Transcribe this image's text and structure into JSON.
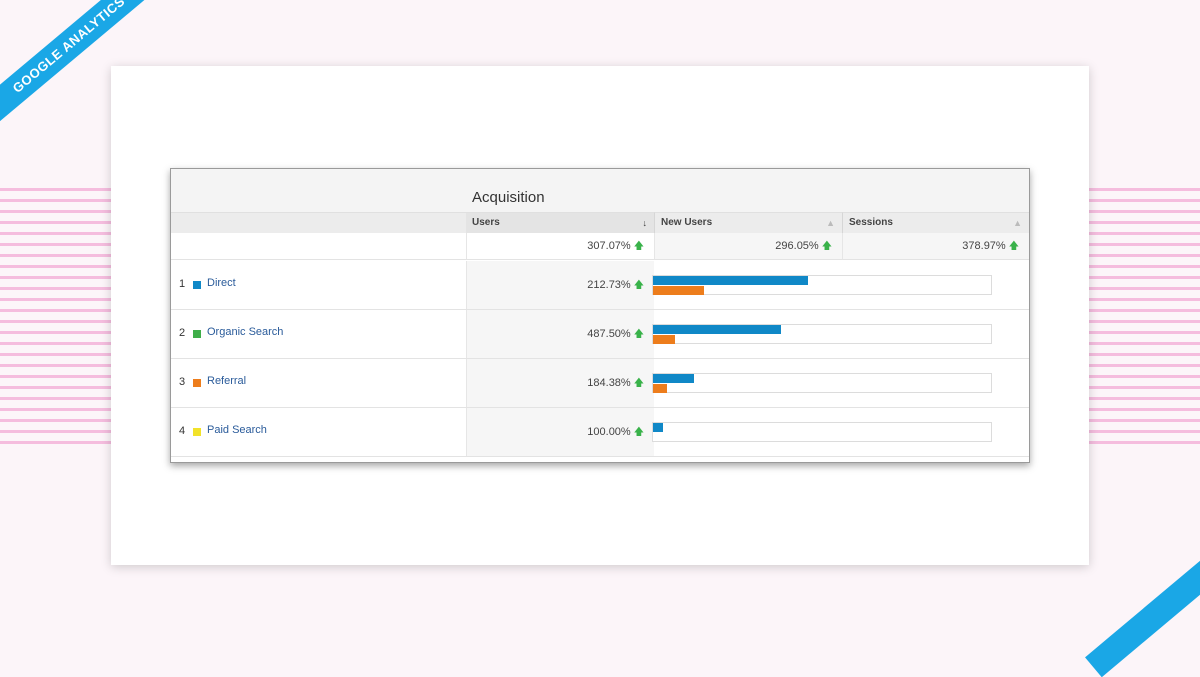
{
  "ribbon": {
    "text": "GOOGLE ANALYTICS"
  },
  "report": {
    "group_title": "Acquisition",
    "columns": [
      {
        "label": "Users",
        "sort_icon": "arrow-down-icon",
        "active": true
      },
      {
        "label": "New Users",
        "sort_icon": "sort-icon",
        "active": false
      },
      {
        "label": "Sessions",
        "sort_icon": "sort-icon",
        "active": false
      }
    ],
    "totals": {
      "users": "307.07%",
      "new_users": "296.05%",
      "sessions": "378.97%"
    },
    "rows": [
      {
        "index": "1",
        "label": "Direct",
        "swatch_color": "#1088c7",
        "users": "212.73%",
        "bar_primary": 0.46,
        "bar_secondary": 0.15
      },
      {
        "index": "2",
        "label": "Organic Search",
        "swatch_color": "#3fae49",
        "users": "487.50%",
        "bar_primary": 0.38,
        "bar_secondary": 0.065
      },
      {
        "index": "3",
        "label": "Referral",
        "swatch_color": "#ed7d1c",
        "users": "184.38%",
        "bar_primary": 0.12,
        "bar_secondary": 0.04
      },
      {
        "index": "4",
        "label": "Paid Search",
        "swatch_color": "#f2e22a",
        "users": "100.00%",
        "bar_primary": 0.03,
        "bar_secondary": 0.0
      }
    ],
    "colors": {
      "bar_primary": "#1088c7",
      "bar_secondary": "#ed7d1c",
      "trend_up": "#39b24a"
    }
  }
}
